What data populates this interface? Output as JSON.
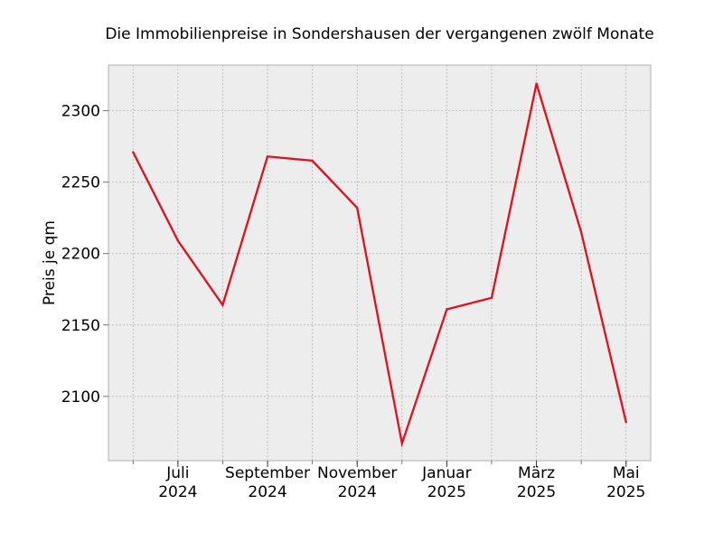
{
  "chart_data": {
    "type": "line",
    "title": "Die Immobilienpreise in Sondershausen der vergangenen zwölf Monate",
    "xlabel": "",
    "ylabel": "Preis je qm",
    "x": [
      "2024-06",
      "2024-07",
      "2024-08",
      "2024-09",
      "2024-10",
      "2024-11",
      "2024-12",
      "2025-01",
      "2025-02",
      "2025-03",
      "2025-04",
      "2025-05"
    ],
    "series": [
      {
        "values": [
          2271,
          2209,
          2164,
          2268,
          2265,
          2232,
          2067,
          2161,
          2169,
          2319,
          2215,
          2082
        ],
        "color": "#e0101e"
      }
    ],
    "x_tick_labels": [
      {
        "x": "2024-07",
        "month": "Juli",
        "year": "2024"
      },
      {
        "x": "2024-09",
        "month": "September",
        "year": "2024"
      },
      {
        "x": "2024-11",
        "month": "November",
        "year": "2024"
      },
      {
        "x": "2025-01",
        "month": "Januar",
        "year": "2025"
      },
      {
        "x": "2025-03",
        "month": "März",
        "year": "2025"
      },
      {
        "x": "2025-05",
        "month": "Mai",
        "year": "2025"
      }
    ],
    "y_ticks": [
      2100,
      2150,
      2200,
      2250,
      2300
    ],
    "ylim": [
      2055,
      2332
    ],
    "grid": true,
    "background": "#ededed"
  }
}
